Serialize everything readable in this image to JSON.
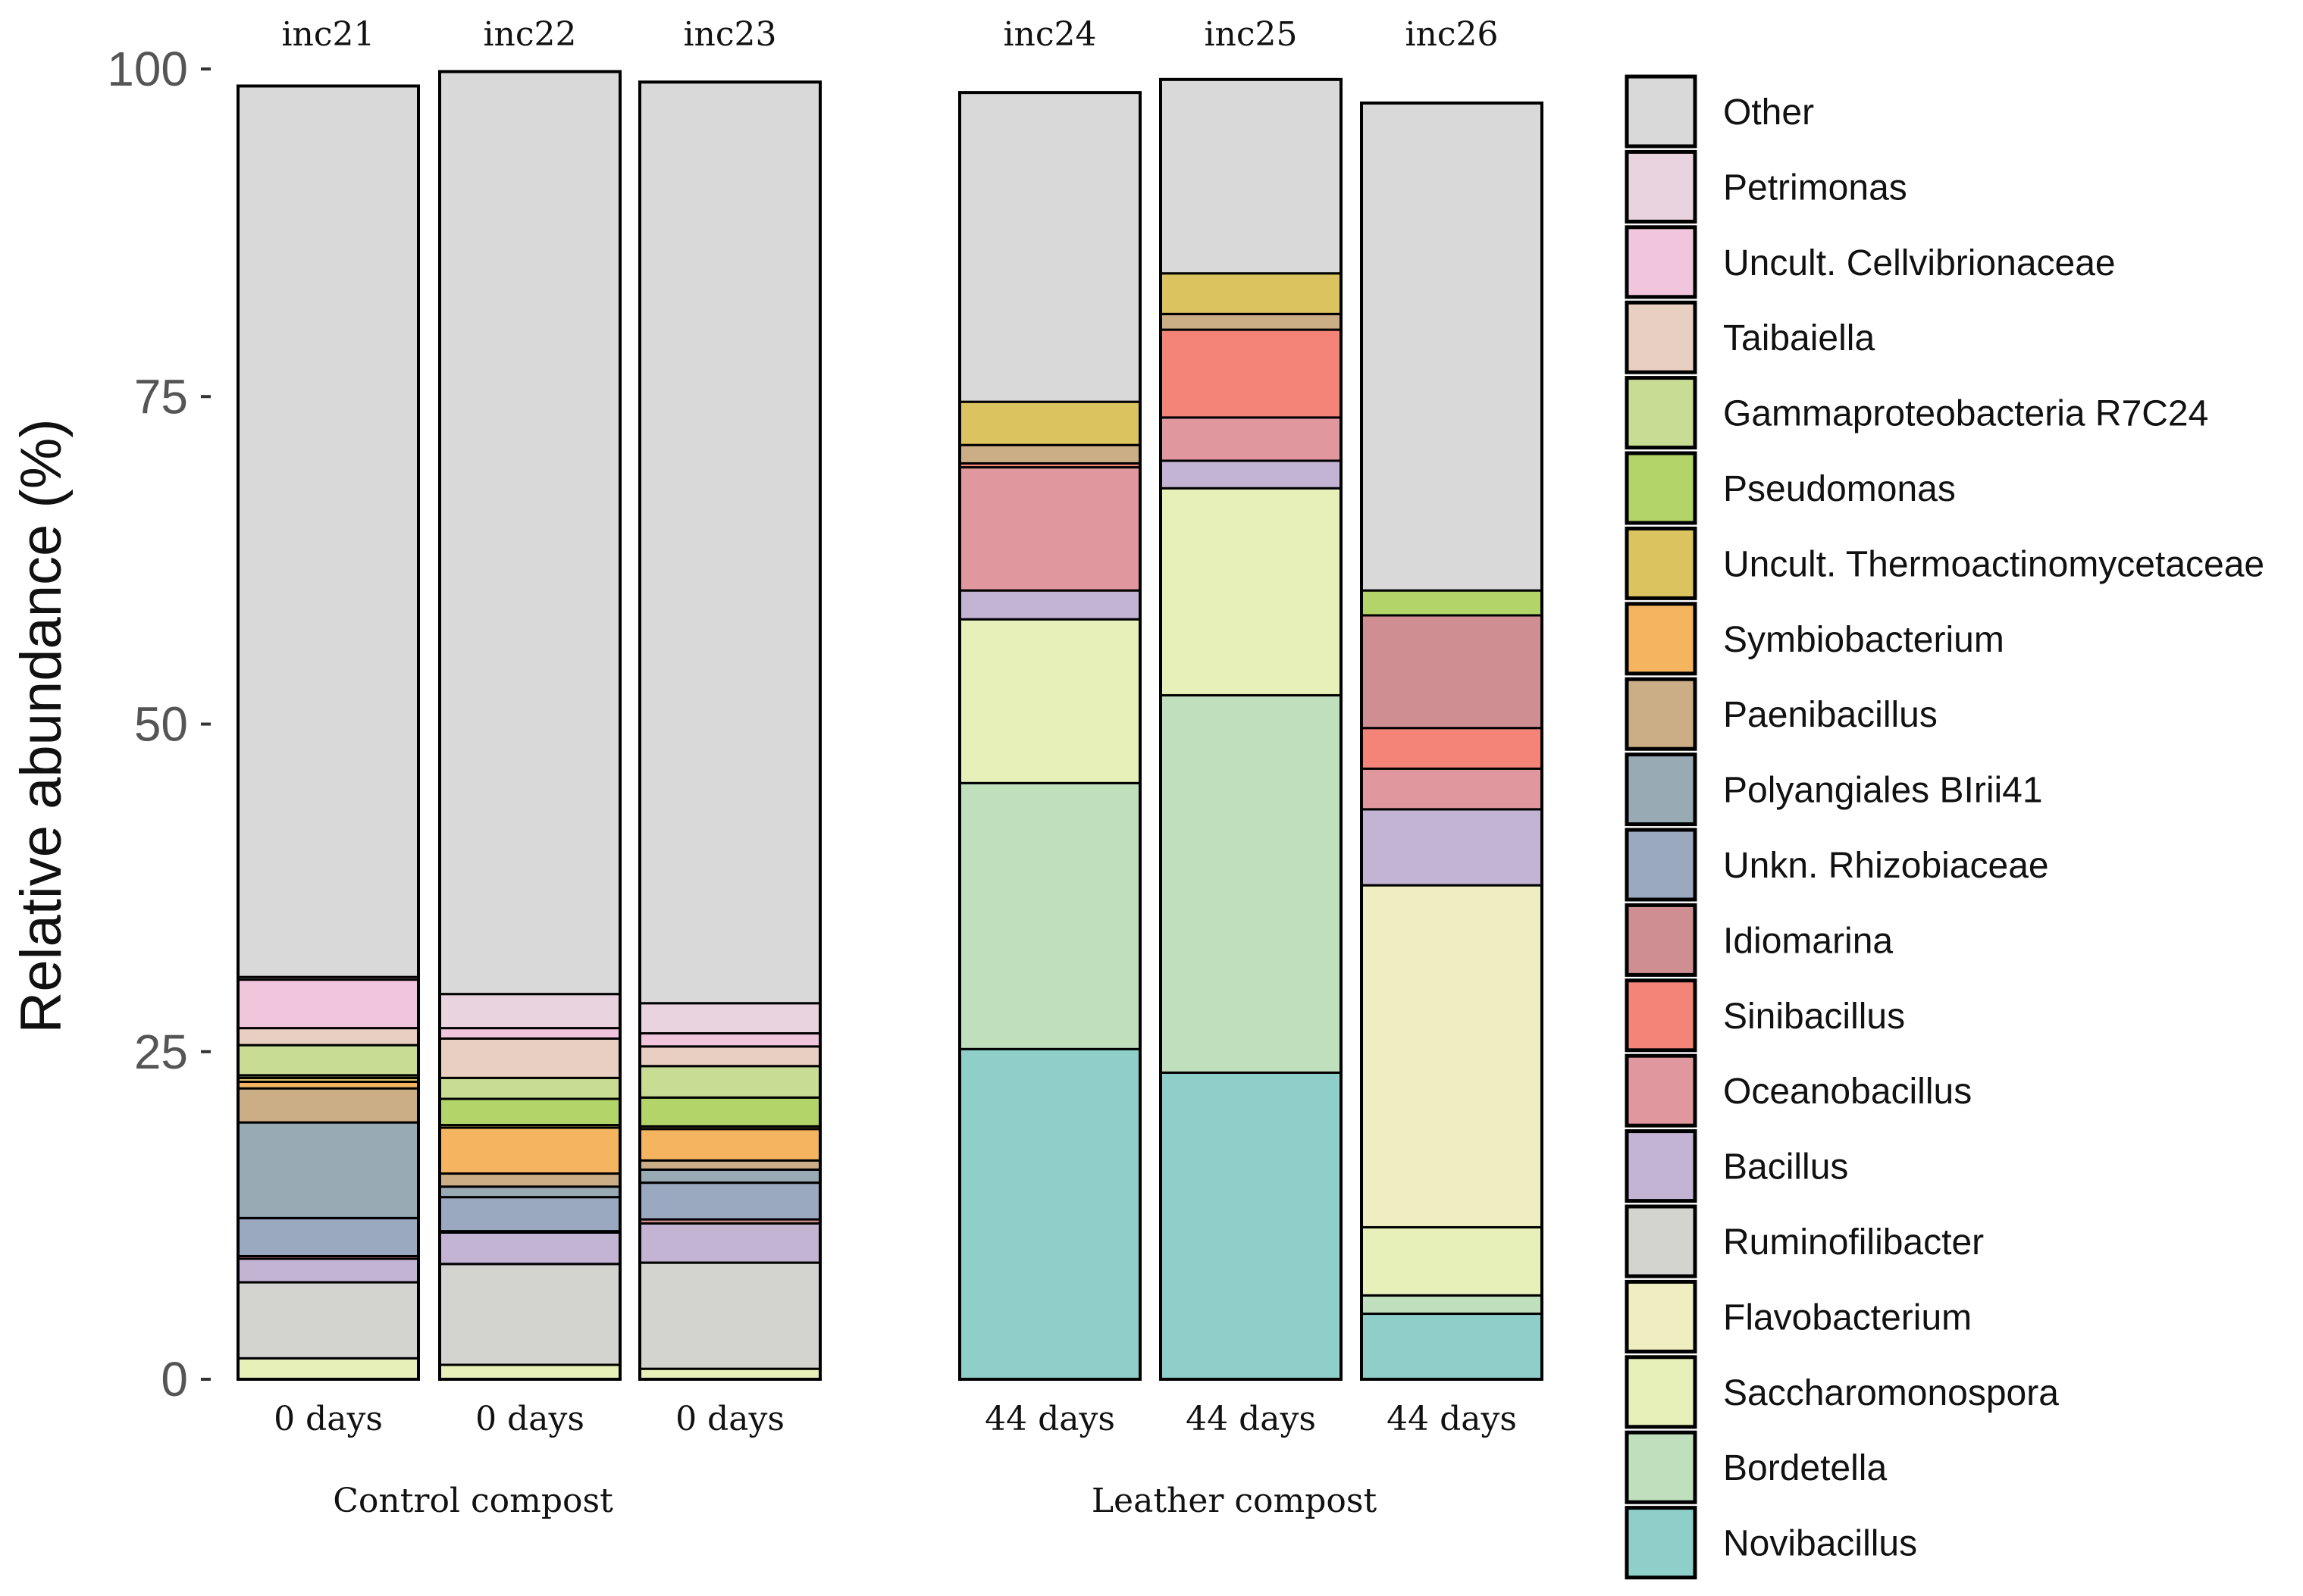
{
  "chart_data": {
    "type": "bar",
    "stacked": true,
    "ylabel": "Relative abundance (%)",
    "ylim": [
      0,
      100
    ],
    "yticks": [
      "0",
      "25",
      "50",
      "75",
      "100"
    ],
    "groups": [
      {
        "label": "Control compost",
        "samples": [
          "inc21",
          "inc22",
          "inc23"
        ]
      },
      {
        "label": "Leather compost",
        "samples": [
          "inc24",
          "inc25",
          "inc26"
        ]
      }
    ],
    "categories": [
      "inc21",
      "inc22",
      "inc23",
      "inc24",
      "inc25",
      "inc26"
    ],
    "timepoints": [
      "0 days",
      "0 days",
      "0 days",
      "44 days",
      "44 days",
      "44 days"
    ],
    "legend_position": "right",
    "series": [
      {
        "name": "Novibacillus",
        "color": "#8ecfc9",
        "values": [
          0,
          0,
          0,
          25.2,
          23.4,
          5
        ]
      },
      {
        "name": "Bordetella",
        "color": "#c0e0bd",
        "values": [
          0,
          0,
          0,
          20.3,
          28.8,
          1.4
        ]
      },
      {
        "name": "Saccharomonospora",
        "color": "#e6f0b8",
        "values": [
          1.6,
          1.1,
          0.8,
          12.5,
          15.8,
          5.2
        ]
      },
      {
        "name": "Flavobacterium",
        "color": "#eeeec0",
        "values": [
          0,
          0,
          0,
          0,
          0,
          26.1
        ]
      },
      {
        "name": "Ruminofilibacter",
        "color": "#d3d3d0",
        "values": [
          5.8,
          7.7,
          8.1,
          0,
          0,
          0
        ]
      },
      {
        "name": "Bacillus",
        "color": "#c4b4d4",
        "values": [
          1.8,
          2.4,
          3,
          2.2,
          2.1,
          5.8
        ]
      },
      {
        "name": "Oceanobacillus",
        "color": "#e0989e",
        "values": [
          0.2,
          0.1,
          0.3,
          9.4,
          3.3,
          3.1
        ]
      },
      {
        "name": "Sinibacillus",
        "color": "#f48478",
        "values": [
          0,
          0,
          0,
          0.3,
          6.7,
          3.1
        ]
      },
      {
        "name": "Idiomarina",
        "color": "#ce8e92",
        "values": [
          0,
          0,
          0,
          0,
          0,
          8.6
        ]
      },
      {
        "name": "Unkn. Rhizobiaceae",
        "color": "#9aa8c0",
        "values": [
          2.9,
          2.6,
          2.8,
          0,
          0,
          0
        ]
      },
      {
        "name": "Polyangiales BIrii41",
        "color": "#98aab4",
        "values": [
          7.3,
          0.8,
          1,
          0,
          0,
          0
        ]
      },
      {
        "name": "Paenibacillus",
        "color": "#cbae86",
        "values": [
          2.6,
          1,
          0.7,
          1.4,
          1.2,
          0
        ]
      },
      {
        "name": "Symbiobacterium",
        "color": "#f5b560",
        "values": [
          0.5,
          3.5,
          2.4,
          0,
          0,
          0
        ]
      },
      {
        "name": "Uncult. Thermoactinomycetaceae",
        "color": "#dbc460",
        "values": [
          0.3,
          0.2,
          0.2,
          3.3,
          3.1,
          0
        ]
      },
      {
        "name": "Pseudomonas",
        "color": "#b2d468",
        "values": [
          0.2,
          2,
          2.2,
          0,
          0,
          1.9
        ]
      },
      {
        "name": "Gammaproteobacteria R7C24",
        "color": "#c8dc94",
        "values": [
          2.3,
          1.6,
          2.4,
          0,
          0,
          0
        ]
      },
      {
        "name": "Taibaiella",
        "color": "#e9cfc1",
        "values": [
          1.3,
          3,
          1.5,
          0,
          0,
          0
        ]
      },
      {
        "name": "Uncult. Cellvibrionaceae",
        "color": "#f1c6dd",
        "values": [
          3.7,
          0.8,
          1,
          0,
          0,
          0
        ]
      },
      {
        "name": "Petrimonas",
        "color": "#e8d3df",
        "values": [
          0.2,
          2.6,
          2.3,
          0,
          0,
          0
        ]
      },
      {
        "name": "Other",
        "color": "#d9d9d9",
        "values": [
          68,
          70.4,
          70.3,
          23.6,
          14.8,
          37.2
        ]
      }
    ]
  }
}
